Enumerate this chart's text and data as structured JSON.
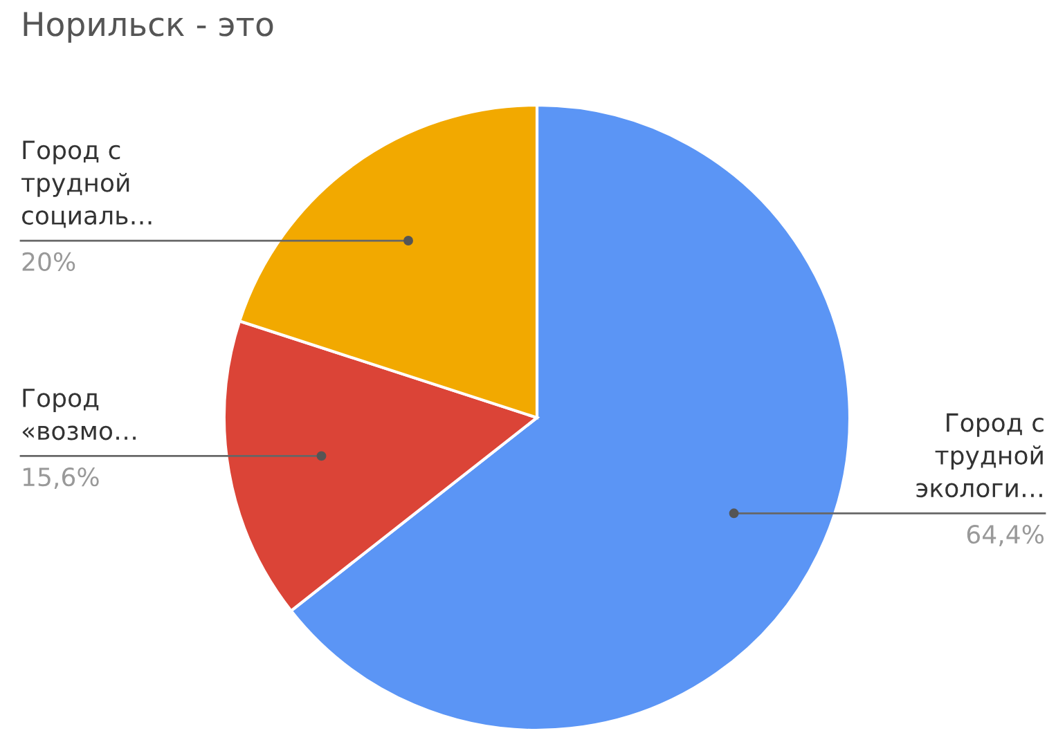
{
  "chart_data": {
    "type": "pie",
    "title": "Норильск - это",
    "categories": [
      "Город с\nтрудной\nэкологи…",
      "Город\n«возмо…",
      "Город с\nтрудной\nсоциаль…"
    ],
    "values": [
      64.4,
      15.6,
      20
    ],
    "value_labels": [
      "64,4%",
      "15,6%",
      "20%"
    ],
    "colors": [
      "#5b95f5",
      "#db4437",
      "#f2a900"
    ],
    "legend": false
  }
}
